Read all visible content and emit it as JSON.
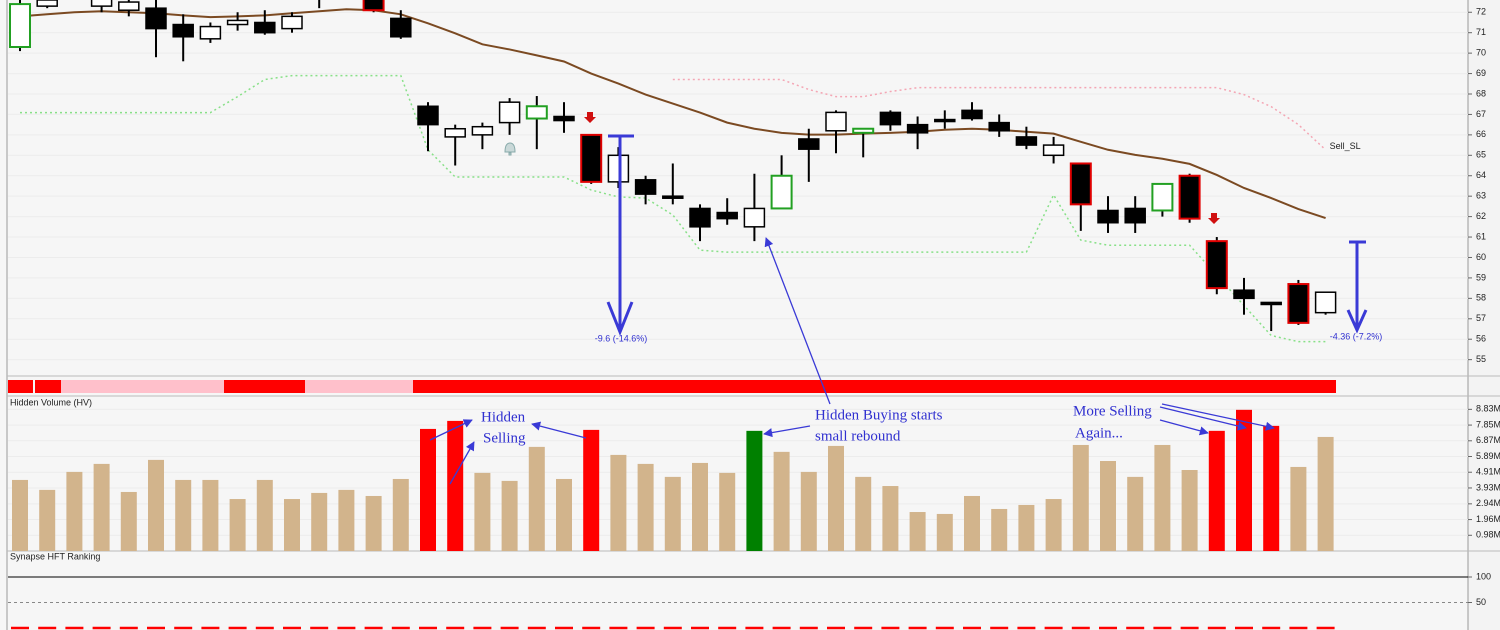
{
  "chart_data": [
    {
      "type": "candlestick",
      "open": [
        70.3,
        72.3,
        72.8,
        72.3,
        72.1,
        72.2,
        71.4,
        70.7,
        71.4,
        71.5,
        71.2,
        72.7,
        73.0,
        72.9,
        71.7,
        67.4,
        65.9,
        66.0,
        66.6,
        66.8,
        66.9,
        66.0,
        63.7,
        63.8,
        63.0,
        62.4,
        62.2,
        61.5,
        62.4,
        65.8,
        66.2,
        66.1,
        67.1,
        66.5,
        66.75,
        67.2,
        66.6,
        65.9,
        65.0,
        64.6,
        62.3,
        62.4,
        62.3,
        64.0,
        60.8,
        58.4,
        57.8,
        58.7,
        57.3
      ],
      "high": [
        72.6,
        72.7,
        73.0,
        72.9,
        72.7,
        72.6,
        71.9,
        71.5,
        72.0,
        72.1,
        72.0,
        73.0,
        73.4,
        73.0,
        72.1,
        67.6,
        66.5,
        66.6,
        67.8,
        67.9,
        67.6,
        66.0,
        65.4,
        64.0,
        64.6,
        62.6,
        62.9,
        64.1,
        65.0,
        66.3,
        67.2,
        66.3,
        67.2,
        66.9,
        67.2,
        67.6,
        67.0,
        66.4,
        65.9,
        64.6,
        63.0,
        63.0,
        63.6,
        64.1,
        61.0,
        59.0,
        57.8,
        58.9,
        58.3
      ],
      "low": [
        70.1,
        72.2,
        72.6,
        72.0,
        71.8,
        69.8,
        69.6,
        70.5,
        71.1,
        70.9,
        71.0,
        72.2,
        72.9,
        72.0,
        70.7,
        65.2,
        64.5,
        65.3,
        66.0,
        65.3,
        66.1,
        63.6,
        63.4,
        62.6,
        62.6,
        60.8,
        61.6,
        60.8,
        62.4,
        63.7,
        65.1,
        64.9,
        66.2,
        65.3,
        66.3,
        66.7,
        65.9,
        65.3,
        64.6,
        61.3,
        61.2,
        61.2,
        62.0,
        61.7,
        58.2,
        57.2,
        56.4,
        56.7,
        57.2
      ],
      "close": [
        72.4,
        72.6,
        72.7,
        72.7,
        72.5,
        71.2,
        70.8,
        71.3,
        71.6,
        71.0,
        71.8,
        72.9,
        73.2,
        72.1,
        70.8,
        66.5,
        66.3,
        66.4,
        67.6,
        67.4,
        66.7,
        63.7,
        65.0,
        63.1,
        62.9,
        61.5,
        61.9,
        62.4,
        64.0,
        65.3,
        67.1,
        66.3,
        66.5,
        66.1,
        66.7,
        66.8,
        66.2,
        65.5,
        65.5,
        62.6,
        61.7,
        61.7,
        63.6,
        61.9,
        58.5,
        58.0,
        57.7,
        56.8,
        58.3
      ],
      "border_colors": [
        "#22a022",
        "#000000",
        "#000000",
        "#000000",
        "#000000",
        "#000000",
        "#000000",
        "#000000",
        "#000000",
        "#000000",
        "#000000",
        "#000000",
        "#000000",
        "#e00000",
        "#000000",
        "#000000",
        "#000000",
        "#000000",
        "#000000",
        "#22a022",
        "#000000",
        "#e00000",
        "#000000",
        "#000000",
        "#000000",
        "#000000",
        "#000000",
        "#000000",
        "#22a022",
        "#000000",
        "#000000",
        "#22a022",
        "#000000",
        "#000000",
        "#000000",
        "#000000",
        "#000000",
        "#000000",
        "#000000",
        "#e00000",
        "#000000",
        "#000000",
        "#22a022",
        "#e00000",
        "#e00000",
        "#000000",
        "#000000",
        "#e00000",
        "#000000"
      ],
      "overlays": [
        {
          "color": "#7b4a22",
          "dash": false,
          "values": [
            71.8,
            71.9,
            72.0,
            72.05,
            72.0,
            71.95,
            71.85,
            71.76,
            71.8,
            71.85,
            71.95,
            72.05,
            72.15,
            72.1,
            71.9,
            71.46,
            70.97,
            70.43,
            70.18,
            69.89,
            69.59,
            69.0,
            68.51,
            67.97,
            67.53,
            67.09,
            66.6,
            66.3,
            66.1,
            66.01,
            66.01,
            66.06,
            66.1,
            66.15,
            66.25,
            66.3,
            66.25,
            66.15,
            66.06,
            65.66,
            65.27,
            65.02,
            64.83,
            64.58,
            64.04,
            63.4,
            62.91,
            62.37,
            61.93
          ]
        },
        {
          "color": "#88e088",
          "dash": true,
          "values": [
            67.09,
            67.09,
            67.09,
            67.09,
            67.09,
            67.09,
            67.09,
            67.09,
            67.87,
            68.71,
            68.9,
            68.9,
            68.9,
            68.9,
            68.9,
            65.27,
            63.94,
            63.94,
            63.94,
            63.94,
            63.94,
            63.3,
            62.96,
            62.91,
            62.08,
            60.36,
            60.26,
            60.26,
            60.26,
            60.26,
            60.26,
            60.26,
            60.26,
            60.26,
            60.26,
            60.26,
            60.26,
            60.26,
            63.06,
            60.85,
            60.6,
            60.6,
            60.6,
            60.6,
            59.13,
            57.65,
            56.18,
            55.88,
            55.88
          ]
        },
        {
          "color": "#f4a6b4",
          "dash": true,
          "label": "Sell_SL",
          "values": [
            null,
            null,
            null,
            null,
            null,
            null,
            null,
            null,
            null,
            null,
            null,
            null,
            null,
            null,
            null,
            null,
            null,
            null,
            null,
            null,
            null,
            null,
            null,
            null,
            68.71,
            68.71,
            68.71,
            68.71,
            68.71,
            68.22,
            67.87,
            67.87,
            68.12,
            68.31,
            68.31,
            68.31,
            68.31,
            68.31,
            68.31,
            68.31,
            68.31,
            68.31,
            68.31,
            68.31,
            68.31,
            67.97,
            67.38,
            66.5,
            65.27
          ]
        }
      ],
      "annotations": [
        "-9.6 (-14.6%)",
        "-4.36 (-7.2%)"
      ],
      "ylim": [
        54.2,
        72.6
      ],
      "yticks": [
        55,
        56,
        57,
        58,
        59,
        60,
        61,
        62,
        63,
        64,
        65,
        66,
        67,
        68,
        69,
        70,
        71,
        72
      ]
    },
    {
      "type": "bar",
      "title": "Hidden Volume (HV)",
      "values": [
        4430000,
        3810000,
        4930000,
        5430000,
        3680000,
        5680000,
        4430000,
        4430000,
        3240000,
        4430000,
        3240000,
        3620000,
        3810000,
        3430000,
        4490000,
        7610000,
        8110000,
        4870000,
        4370000,
        6490000,
        4490000,
        7550000,
        5990000,
        5430000,
        4620000,
        5490000,
        4870000,
        7490000,
        6180000,
        4930000,
        6550000,
        4620000,
        4050000,
        2430000,
        2310000,
        3430000,
        2620000,
        2870000,
        3240000,
        6610000,
        5610000,
        4620000,
        6610000,
        5050000,
        7490000,
        8800000,
        7800000,
        5240000,
        7110000
      ],
      "colors": [
        "#d2b48c",
        "#d2b48c",
        "#d2b48c",
        "#d2b48c",
        "#d2b48c",
        "#d2b48c",
        "#d2b48c",
        "#d2b48c",
        "#d2b48c",
        "#d2b48c",
        "#d2b48c",
        "#d2b48c",
        "#d2b48c",
        "#d2b48c",
        "#d2b48c",
        "#ff0000",
        "#ff0000",
        "#d2b48c",
        "#d2b48c",
        "#d2b48c",
        "#d2b48c",
        "#ff0000",
        "#d2b48c",
        "#d2b48c",
        "#d2b48c",
        "#d2b48c",
        "#d2b48c",
        "#008000",
        "#d2b48c",
        "#d2b48c",
        "#d2b48c",
        "#d2b48c",
        "#d2b48c",
        "#d2b48c",
        "#d2b48c",
        "#d2b48c",
        "#d2b48c",
        "#d2b48c",
        "#d2b48c",
        "#d2b48c",
        "#d2b48c",
        "#d2b48c",
        "#d2b48c",
        "#d2b48c",
        "#ff0000",
        "#ff0000",
        "#ff0000",
        "#d2b48c",
        "#d2b48c"
      ],
      "annotations": [
        "Hidden",
        "Selling",
        "Hidden Buying starts",
        "small rebound",
        "More Selling",
        "Again..."
      ],
      "ylim": [
        0,
        9600000
      ],
      "yticks": [
        {
          "value": 980000,
          "label": "0.98M"
        },
        {
          "value": 1960000,
          "label": "1.96M"
        },
        {
          "value": 2940000,
          "label": "2.94M"
        },
        {
          "value": 3930000,
          "label": "3.93M"
        },
        {
          "value": 4910000,
          "label": "4.91M"
        },
        {
          "value": 5890000,
          "label": "5.89M"
        },
        {
          "value": 6870000,
          "label": "6.87M"
        },
        {
          "value": 7850000,
          "label": "7.85M"
        },
        {
          "value": 8830000,
          "label": "8.83M"
        }
      ]
    },
    {
      "type": "dash",
      "title": "Synapse HFT Ranking",
      "color": "#ff0000",
      "values": [
        0,
        0,
        0,
        0,
        0,
        0,
        0,
        0,
        0,
        0,
        0,
        0,
        0,
        0,
        0,
        0,
        0,
        0,
        0,
        0,
        0,
        0,
        0,
        0,
        0,
        0,
        0,
        0,
        0,
        0,
        0,
        0,
        0,
        0,
        0,
        0,
        0,
        0,
        0,
        0,
        0,
        0,
        0,
        0,
        0,
        0,
        0,
        0,
        0
      ],
      "ylim": [
        -3.9,
        151
      ],
      "yticks": [
        50,
        100
      ]
    }
  ]
}
